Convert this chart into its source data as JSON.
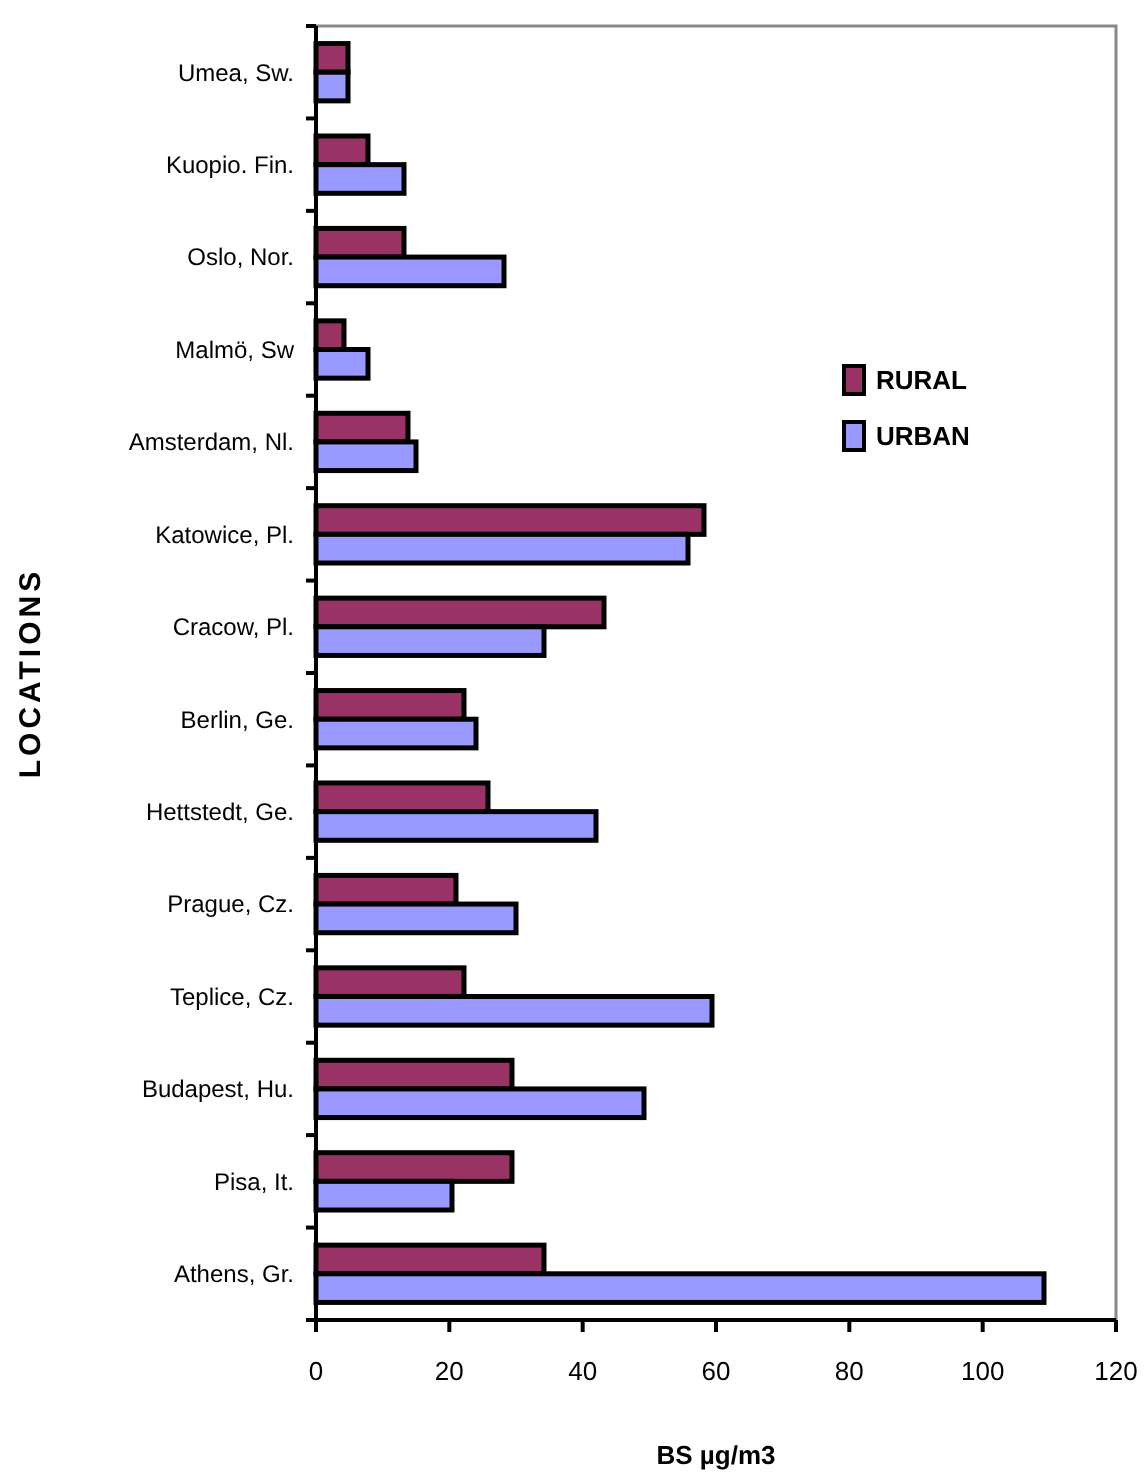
{
  "chart_data": {
    "type": "bar",
    "orientation": "horizontal",
    "xlabel": "BS µg/m3",
    "ylabel": "LOCATIONS",
    "categories": [
      "Umea, Sw.",
      "Kuopio. Fin.",
      "Oslo, Nor.",
      "Malmö, Sw",
      "Amsterdam, Nl.",
      "Katowice, Pl.",
      "Cracow, Pl.",
      "Berlin, Ge.",
      "Hettstedt, Ge.",
      "Prague, Cz.",
      "Teplice, Cz.",
      "Budapest, Hu.",
      "Pisa, It.",
      "Athens, Gr."
    ],
    "series": [
      {
        "name": "RURAL",
        "color": "#993366",
        "values": [
          4.8,
          7.8,
          13.2,
          4.2,
          13.8,
          58.2,
          43.2,
          22.2,
          25.8,
          21,
          22.2,
          29.4,
          29.4,
          34.2
        ]
      },
      {
        "name": "URBAN",
        "color": "#9999ff",
        "values": [
          4.8,
          13.2,
          28.2,
          7.8,
          15,
          55.8,
          34.2,
          24,
          42,
          30,
          59.4,
          49.2,
          20.4,
          109.2
        ]
      }
    ],
    "xlim": [
      0,
      120
    ],
    "xticks": [
      0,
      20,
      40,
      60,
      80,
      100,
      120
    ],
    "grid": false,
    "legend": "right"
  }
}
